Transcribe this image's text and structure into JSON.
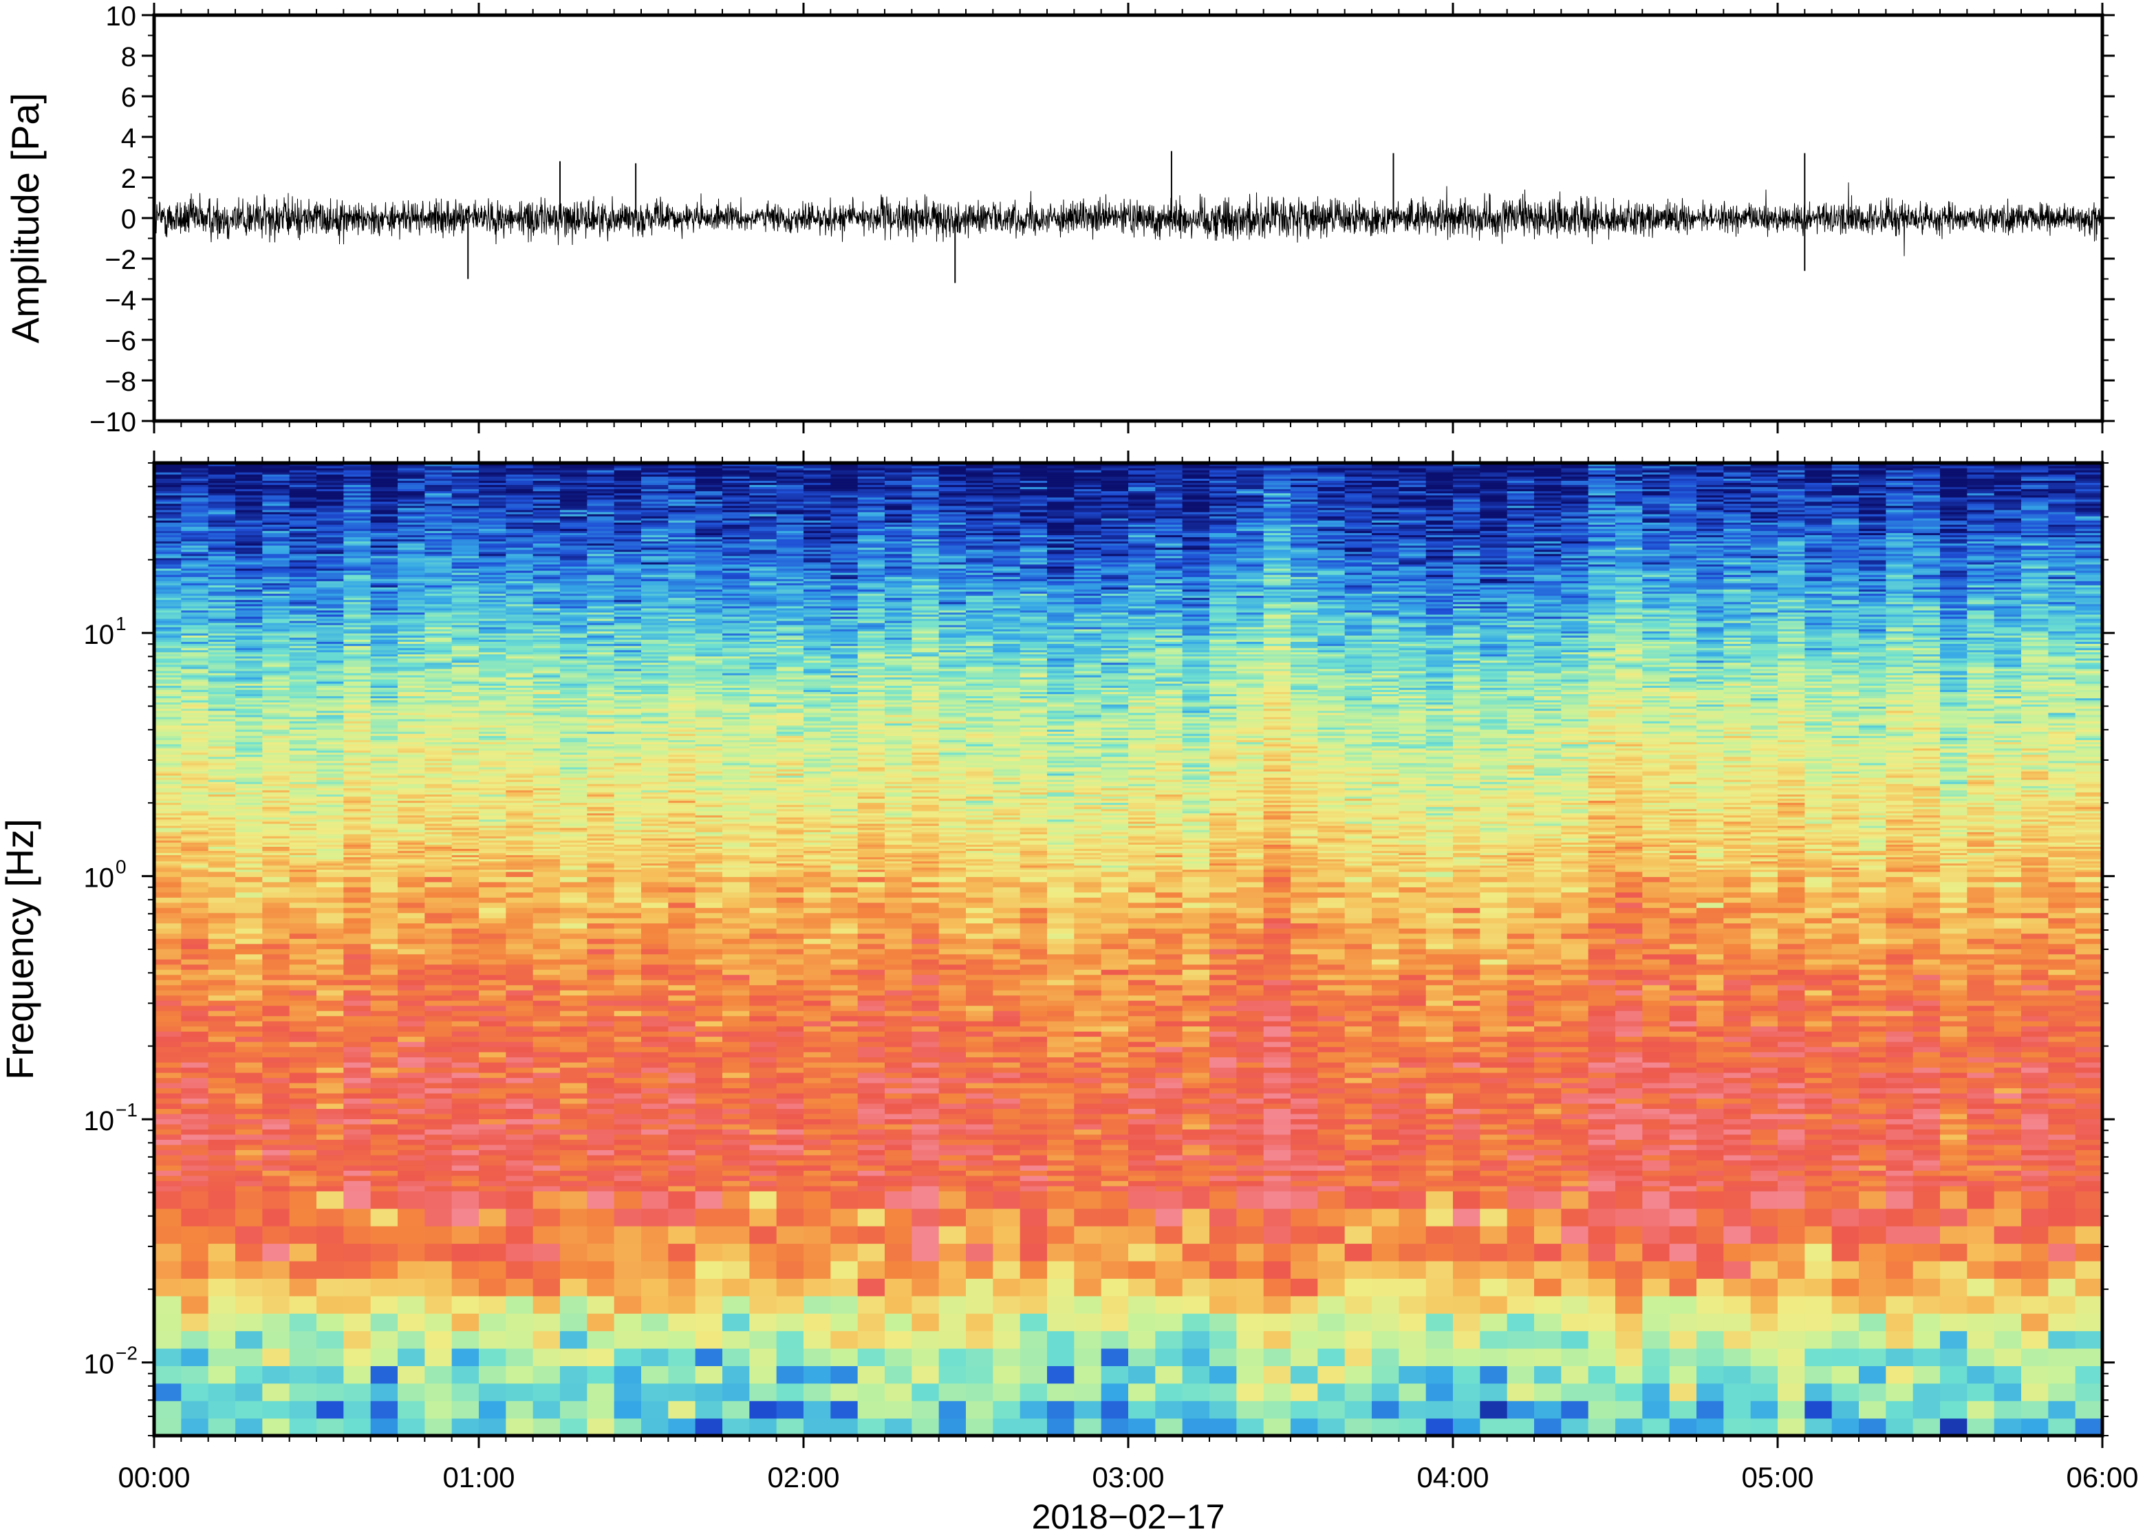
{
  "chart_data": [
    {
      "type": "line",
      "ylabel": "Amplitude [Pa]",
      "ylim": [
        -10,
        10
      ],
      "yticks": [
        -10,
        -8,
        -6,
        -4,
        -2,
        0,
        2,
        4,
        6,
        8,
        10
      ],
      "ytick_labels": [
        "−10",
        "−8",
        "−6",
        "−4",
        "−2",
        "0",
        "2",
        "4",
        "6",
        "8",
        "10"
      ],
      "xlim": [
        "2018-02-17T00:00",
        "2018-02-17T06:00"
      ],
      "grid": false,
      "series": [
        {
          "color": "#000000",
          "description_of_values": "continuous pressure trace, mostly within about ±1 Pa, occasional spikes",
          "typical_range": [
            -1.2,
            1.2
          ],
          "peaks": [
            {
              "time": "2018-02-17T01:15",
              "value": 2.8
            },
            {
              "time": "2018-02-17T01:29",
              "value": 2.7
            },
            {
              "time": "2018-02-17T02:28",
              "value": -3.2
            },
            {
              "time": "2018-02-17T03:08",
              "value": 3.3
            },
            {
              "time": "2018-02-17T03:49",
              "value": 3.2
            },
            {
              "time": "2018-02-17T05:05",
              "value": 3.2
            },
            {
              "time": "2018-02-17T05:05",
              "value": -2.6
            },
            {
              "time": "2018-02-17T00:58",
              "value": -3.0
            }
          ]
        }
      ]
    },
    {
      "type": "heatmap",
      "ylabel": "Frequency [Hz]",
      "yscale": "log",
      "ylim": [
        0.005,
        50
      ],
      "yticks": [
        {
          "value": 0.01,
          "base": "10",
          "exp": "−2"
        },
        {
          "value": 0.1,
          "base": "10",
          "exp": "−1"
        },
        {
          "value": 1,
          "base": "10",
          "exp": "0"
        },
        {
          "value": 10,
          "base": "10",
          "exp": "1"
        }
      ],
      "xlabel": "2018−02−17",
      "xlim": [
        "2018-02-17T00:00",
        "2018-02-17T06:00"
      ],
      "xticks": [
        "00:00",
        "01:00",
        "02:00",
        "03:00",
        "04:00",
        "05:00",
        "06:00"
      ],
      "colormap": "rainbow (blue low, red high)",
      "colormap_stops": [
        "#0b0f6e",
        "#1f4fd6",
        "#36a7e6",
        "#6fe0d0",
        "#c8f29a",
        "#f0ec84",
        "#f6bf5a",
        "#f4853f",
        "#ee5a4e",
        "#f4868f"
      ],
      "relative_level_profile": [
        {
          "freq": 0.006,
          "level": 0.3
        },
        {
          "freq": 0.01,
          "level": 0.38
        },
        {
          "freq": 0.015,
          "level": 0.5
        },
        {
          "freq": 0.02,
          "level": 0.66
        },
        {
          "freq": 0.03,
          "level": 0.8
        },
        {
          "freq": 0.05,
          "level": 0.86
        },
        {
          "freq": 0.1,
          "level": 0.88
        },
        {
          "freq": 0.2,
          "level": 0.84
        },
        {
          "freq": 0.4,
          "level": 0.77
        },
        {
          "freq": 0.8,
          "level": 0.68
        },
        {
          "freq": 2,
          "level": 0.55
        },
        {
          "freq": 5,
          "level": 0.44
        },
        {
          "freq": 10,
          "level": 0.3
        },
        {
          "freq": 20,
          "level": 0.16
        },
        {
          "freq": 50,
          "level": 0.02
        }
      ],
      "grid": false
    }
  ]
}
